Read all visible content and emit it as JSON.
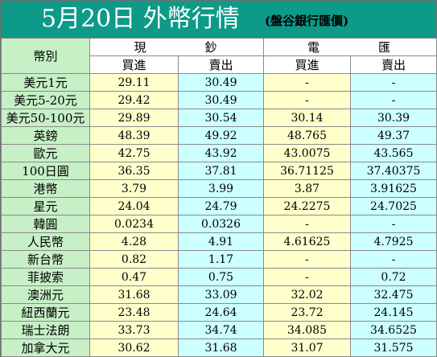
{
  "header": {
    "title": "5月20日 外幣行情",
    "subtitle": "(盤谷銀行匯價)"
  },
  "table": {
    "currency_header": "幣別",
    "groups": [
      {
        "left": "現",
        "right": "鈔"
      },
      {
        "left": "電",
        "right": "匯"
      }
    ],
    "columns": [
      "買進",
      "賣出",
      "買進",
      "賣出"
    ],
    "rows": [
      {
        "label": "美元1元",
        "cash_buy": "29.11",
        "cash_sell": "30.49",
        "tt_buy": "-",
        "tt_sell": "-"
      },
      {
        "label": "美元5-20元",
        "cash_buy": "29.42",
        "cash_sell": "30.49",
        "tt_buy": "-",
        "tt_sell": "-"
      },
      {
        "label": "美元50-100元",
        "cash_buy": "29.89",
        "cash_sell": "30.54",
        "tt_buy": "30.14",
        "tt_sell": "30.39"
      },
      {
        "label": "英鎊",
        "cash_buy": "48.39",
        "cash_sell": "49.92",
        "tt_buy": "48.765",
        "tt_sell": "49.37"
      },
      {
        "label": "歐元",
        "cash_buy": "42.75",
        "cash_sell": "43.92",
        "tt_buy": "43.0075",
        "tt_sell": "43.565"
      },
      {
        "label": "100日圓",
        "cash_buy": "36.35",
        "cash_sell": "37.81",
        "tt_buy": "36.71125",
        "tt_sell": "37.40375"
      },
      {
        "label": "港幣",
        "cash_buy": "3.79",
        "cash_sell": "3.99",
        "tt_buy": "3.87",
        "tt_sell": "3.91625"
      },
      {
        "label": "星元",
        "cash_buy": "24.04",
        "cash_sell": "24.79",
        "tt_buy": "24.2275",
        "tt_sell": "24.7025"
      },
      {
        "label": "韓圓",
        "cash_buy": "0.0234",
        "cash_sell": "0.0326",
        "tt_buy": "-",
        "tt_sell": "-"
      },
      {
        "label": "人民幣",
        "cash_buy": "4.28",
        "cash_sell": "4.91",
        "tt_buy": "4.61625",
        "tt_sell": "4.7925"
      },
      {
        "label": "新台幣",
        "cash_buy": "0.82",
        "cash_sell": "1.17",
        "tt_buy": "-",
        "tt_sell": "-"
      },
      {
        "label": "菲披索",
        "cash_buy": "0.47",
        "cash_sell": "0.75",
        "tt_buy": "-",
        "tt_sell": "0.72"
      },
      {
        "label": "澳洲元",
        "cash_buy": "31.68",
        "cash_sell": "33.09",
        "tt_buy": "32.02",
        "tt_sell": "32.475"
      },
      {
        "label": "紐西蘭元",
        "cash_buy": "23.48",
        "cash_sell": "24.64",
        "tt_buy": "23.72",
        "tt_sell": "24.145"
      },
      {
        "label": "瑞士法朗",
        "cash_buy": "33.73",
        "cash_sell": "34.74",
        "tt_buy": "34.085",
        "tt_sell": "34.6525"
      },
      {
        "label": "加拿大元",
        "cash_buy": "30.62",
        "cash_sell": "31.68",
        "tt_buy": "31.07",
        "tt_sell": "31.575"
      }
    ]
  },
  "colors": {
    "header_bg": "#0d9a88",
    "label_bg": "#c7f0c7",
    "buy_bg": "#ffffcc",
    "sell_bg": "#ccffff"
  }
}
